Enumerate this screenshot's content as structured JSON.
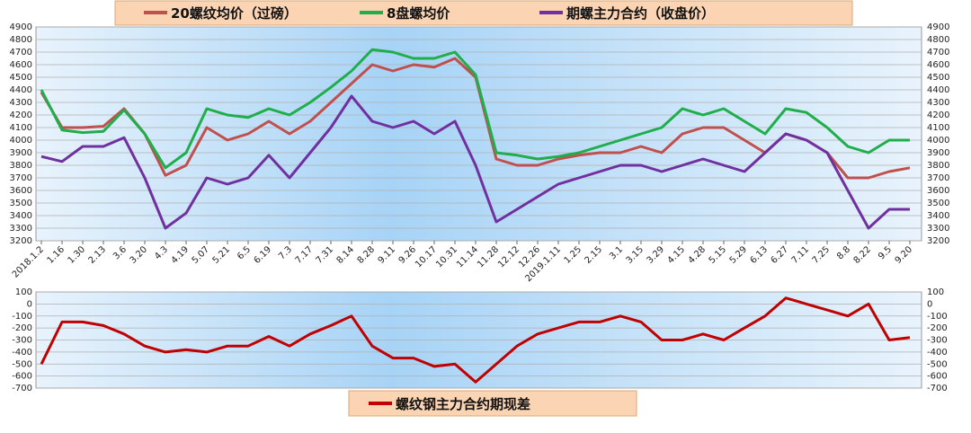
{
  "chart_data": [
    {
      "type": "line",
      "categories": [
        "2018.1.2",
        "1.16",
        "1.30",
        "2.13",
        "3.6",
        "3.20",
        "4.3",
        "4.19",
        "5.07",
        "5.21",
        "6.5",
        "6.19",
        "7.3",
        "7.17",
        "7.31",
        "8.14",
        "8.28",
        "9.11",
        "9.26",
        "10.17",
        "10.31",
        "11.14",
        "11.28",
        "12.12",
        "12.26",
        "2019.1.11",
        "1.25",
        "2.15",
        "3.1",
        "3.15",
        "3.29",
        "4.15",
        "4.28",
        "5.15",
        "5.29",
        "6.13",
        "6.27",
        "7.11",
        "7.25",
        "8.8",
        "8.22",
        "9.5",
        "9.20"
      ],
      "series": [
        {
          "name": "20螺纹均价（过磅）",
          "color": "#c0504d",
          "values": [
            4380,
            4100,
            4100,
            4110,
            4250,
            4050,
            3720,
            3800,
            4100,
            4000,
            4050,
            4150,
            4050,
            4150,
            4300,
            4450,
            4600,
            4550,
            4600,
            4580,
            4650,
            4500,
            3850,
            3800,
            3800,
            3850,
            3880,
            3900,
            3900,
            3950,
            3900,
            4050,
            4100,
            4100,
            4000,
            3900,
            4050,
            4000,
            3900,
            3700,
            3700,
            3750,
            3780
          ]
        },
        {
          "name": "8盘螺均价",
          "color": "#1fae4b",
          "values": [
            4400,
            4080,
            4060,
            4070,
            4240,
            4050,
            3780,
            3900,
            4250,
            4200,
            4180,
            4250,
            4200,
            4300,
            4420,
            4550,
            4720,
            4700,
            4650,
            4650,
            4700,
            4520,
            3900,
            3880,
            3850,
            3870,
            3900,
            3950,
            4000,
            4050,
            4100,
            4250,
            4200,
            4250,
            4150,
            4050,
            4250,
            4220,
            4100,
            3950,
            3900,
            4000,
            4000
          ]
        },
        {
          "name": "期螺主力合约（收盘价）",
          "color": "#7030a0",
          "values": [
            3870,
            3830,
            3950,
            3950,
            4020,
            3700,
            3300,
            3420,
            3700,
            3650,
            3700,
            3880,
            3700,
            3900,
            4100,
            4350,
            4150,
            4100,
            4150,
            4050,
            4150,
            3800,
            3350,
            3450,
            3550,
            3650,
            3700,
            3750,
            3800,
            3800,
            3750,
            3800,
            3850,
            3800,
            3750,
            3900,
            4050,
            4000,
            3900,
            3600,
            3300,
            3450,
            3450
          ]
        }
      ],
      "ylim": [
        3200,
        4900
      ],
      "yticks": [
        3200,
        3300,
        3400,
        3500,
        3600,
        3700,
        3800,
        3900,
        4000,
        4100,
        4200,
        4300,
        4400,
        4500,
        4600,
        4700,
        4800,
        4900
      ],
      "grid": true
    },
    {
      "type": "line",
      "series": [
        {
          "name": "螺纹钢主力合约期现差",
          "color": "#c00000",
          "values": [
            -500,
            -150,
            -150,
            -180,
            -250,
            -350,
            -400,
            -380,
            -400,
            -350,
            -350,
            -270,
            -350,
            -250,
            -180,
            -100,
            -350,
            -450,
            -450,
            -520,
            -500,
            -650,
            -500,
            -350,
            -250,
            -200,
            -150,
            -150,
            -100,
            -150,
            -300,
            -300,
            -250,
            -300,
            -200,
            -100,
            50,
            0,
            -50,
            -100,
            0,
            -300,
            -280
          ]
        }
      ],
      "ylim": [
        -700,
        100
      ],
      "yticks": [
        -700,
        -600,
        -500,
        -400,
        -300,
        -200,
        -100,
        0,
        100
      ],
      "grid": true
    }
  ]
}
